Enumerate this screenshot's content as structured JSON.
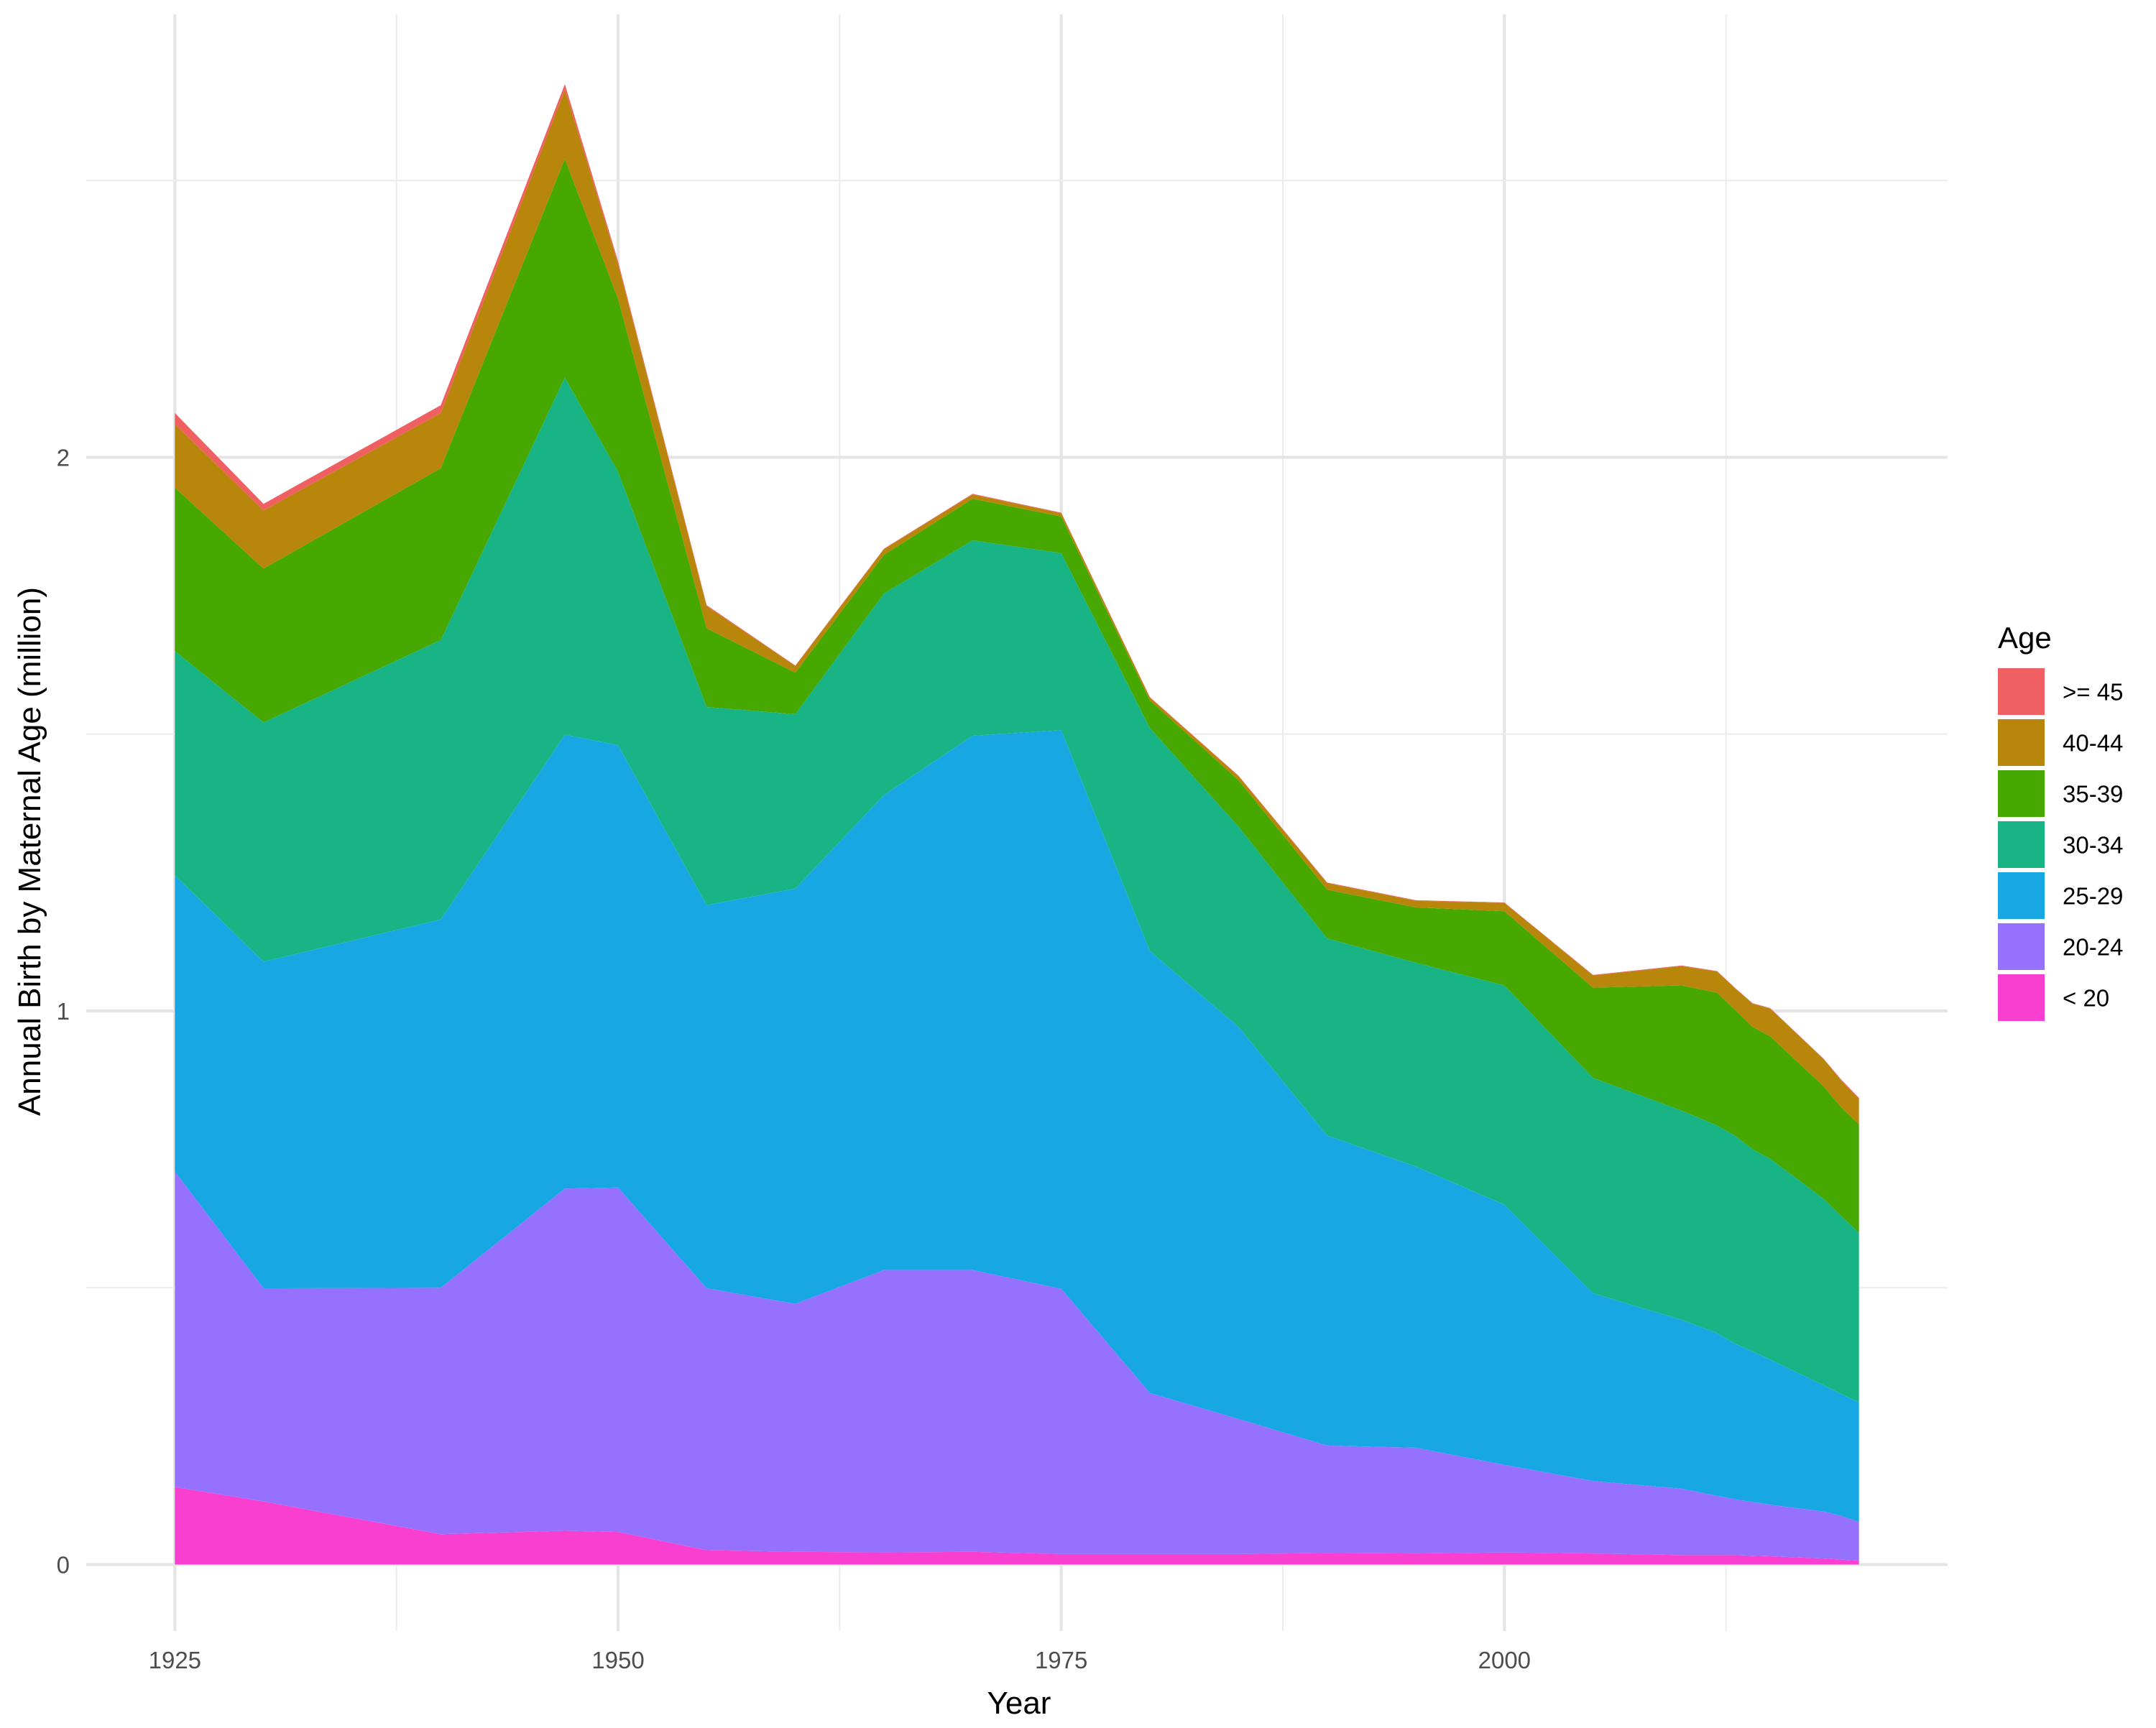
{
  "chart_data": {
    "type": "area",
    "stacked": true,
    "xlabel": "Year",
    "ylabel": "Annual Birth by Maternal Age (million)",
    "xlim": [
      1920,
      2025
    ],
    "ylim": [
      -0.12,
      2.8
    ],
    "x_ticks": [
      1925,
      1950,
      1975,
      2000
    ],
    "x_tick_labels": [
      "1925",
      "1950",
      "1975",
      "2000"
    ],
    "y_ticks": [
      0,
      1,
      2
    ],
    "y_tick_labels": [
      "0",
      "1",
      "2"
    ],
    "grid": true,
    "legend_position": "right",
    "legend_title": "Age",
    "x": [
      1925,
      1930,
      1940,
      1947,
      1950,
      1955,
      1960,
      1965,
      1970,
      1975,
      1980,
      1985,
      1990,
      1995,
      2000,
      2005,
      2010,
      2012,
      2013,
      2014,
      2015,
      2018,
      2019,
      2020
    ],
    "series": [
      {
        "name": "< 20",
        "color": "#F83FD0",
        "values": [
          0.14,
          0.114,
          0.055,
          0.061,
          0.059,
          0.026,
          0.023,
          0.022,
          0.023,
          0.019,
          0.019,
          0.019,
          0.021,
          0.02,
          0.022,
          0.02,
          0.017,
          0.017,
          0.017,
          0.016,
          0.015,
          0.011,
          0.009,
          0.007
        ]
      },
      {
        "name": "20-24",
        "color": "#9571FE",
        "values": [
          0.57,
          0.385,
          0.445,
          0.618,
          0.622,
          0.473,
          0.448,
          0.51,
          0.509,
          0.479,
          0.291,
          0.244,
          0.194,
          0.191,
          0.158,
          0.131,
          0.12,
          0.107,
          0.101,
          0.097,
          0.093,
          0.085,
          0.079,
          0.07
        ]
      },
      {
        "name": "25-29",
        "color": "#17A8E3",
        "values": [
          0.535,
          0.59,
          0.665,
          0.82,
          0.799,
          0.692,
          0.75,
          0.858,
          0.965,
          1.009,
          0.798,
          0.708,
          0.56,
          0.508,
          0.47,
          0.339,
          0.305,
          0.294,
          0.281,
          0.272,
          0.262,
          0.228,
          0.22,
          0.216
        ]
      },
      {
        "name": "30-34",
        "color": "#19B485",
        "values": [
          0.405,
          0.432,
          0.505,
          0.645,
          0.494,
          0.358,
          0.315,
          0.364,
          0.353,
          0.32,
          0.403,
          0.362,
          0.356,
          0.368,
          0.396,
          0.389,
          0.378,
          0.375,
          0.376,
          0.365,
          0.363,
          0.337,
          0.322,
          0.306
        ]
      },
      {
        "name": "35-39",
        "color": "#46A800",
        "values": [
          0.295,
          0.278,
          0.31,
          0.395,
          0.312,
          0.142,
          0.075,
          0.07,
          0.075,
          0.066,
          0.05,
          0.084,
          0.088,
          0.1,
          0.134,
          0.163,
          0.226,
          0.24,
          0.227,
          0.221,
          0.221,
          0.203,
          0.196,
          0.196
        ]
      },
      {
        "name": "40-44",
        "color": "#B8860B",
        "values": [
          0.115,
          0.105,
          0.1,
          0.125,
          0.063,
          0.04,
          0.012,
          0.01,
          0.008,
          0.006,
          0.005,
          0.007,
          0.012,
          0.012,
          0.015,
          0.022,
          0.035,
          0.038,
          0.039,
          0.042,
          0.05,
          0.049,
          0.048,
          0.046
        ]
      },
      {
        "name": ">= 45",
        "color": "#F06062",
        "values": [
          0.02,
          0.012,
          0.014,
          0.01,
          0.005,
          0.002,
          0.001,
          0.001,
          0.001,
          0.001,
          0.001,
          0.001,
          0.001,
          0.001,
          0.001,
          0.001,
          0.001,
          0.001,
          0.001,
          0.001,
          0.001,
          0.001,
          0.002,
          0.002
        ]
      }
    ]
  }
}
